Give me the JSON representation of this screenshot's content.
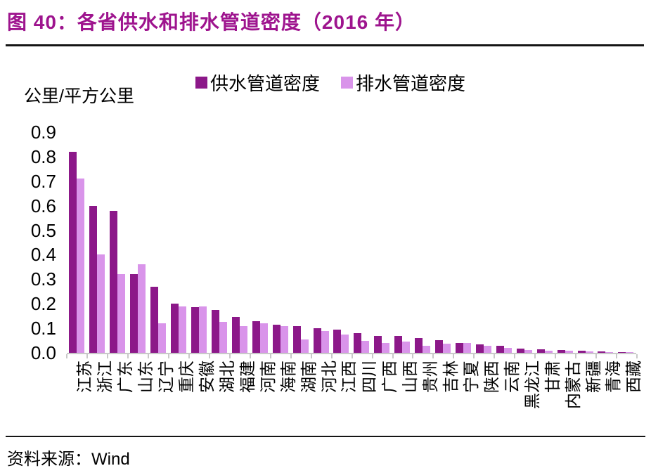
{
  "header": {
    "title": "图 40：各省供水和排水管道密度（2016 年）"
  },
  "y_axis": {
    "unit_label": "公里/平方公里"
  },
  "source": {
    "label": "资料来源：",
    "value": "Wind"
  },
  "colors": {
    "title": "#9E148E",
    "rule": "#151515",
    "axis": "#C9C9C9",
    "supply_bar": "#8C1889",
    "drainage_bar": "#D994EA",
    "text": "#000000"
  },
  "chart_data": {
    "type": "bar",
    "title": "各省供水和排水管道密度（2016 年）",
    "xlabel": "",
    "ylabel": "公里/平方公里",
    "ylim": [
      0,
      0.9
    ],
    "yticks": [
      "0.9",
      "0.8",
      "0.7",
      "0.6",
      "0.5",
      "0.4",
      "0.3",
      "0.2",
      "0.1",
      "0.0"
    ],
    "grid": false,
    "legend_position": "top",
    "categories": [
      "江苏",
      "浙江",
      "广东",
      "山东",
      "辽宁",
      "重庆",
      "安徽",
      "湖北",
      "福建",
      "河南",
      "海南",
      "湖南",
      "河北",
      "江西",
      "四川",
      "广西",
      "山西",
      "贵州",
      "吉林",
      "宁夏",
      "陕西",
      "云南",
      "黑龙江",
      "甘肃",
      "内蒙古",
      "新疆",
      "青海",
      "西藏"
    ],
    "series": [
      {
        "name": "供水管道密度",
        "color": "#8C1889",
        "values": [
          0.82,
          0.6,
          0.58,
          0.32,
          0.27,
          0.2,
          0.185,
          0.175,
          0.145,
          0.13,
          0.115,
          0.11,
          0.1,
          0.095,
          0.08,
          0.07,
          0.068,
          0.06,
          0.053,
          0.04,
          0.033,
          0.03,
          0.018,
          0.014,
          0.012,
          0.01,
          0.006,
          0.004
        ]
      },
      {
        "name": "排水管道密度",
        "color": "#D994EA",
        "values": [
          0.71,
          0.4,
          0.32,
          0.36,
          0.12,
          0.19,
          0.19,
          0.125,
          0.11,
          0.12,
          0.11,
          0.055,
          0.09,
          0.075,
          0.05,
          0.04,
          0.046,
          0.03,
          0.036,
          0.04,
          0.03,
          0.02,
          0.012,
          0.01,
          0.008,
          0.006,
          0.004,
          0.002
        ]
      }
    ]
  }
}
